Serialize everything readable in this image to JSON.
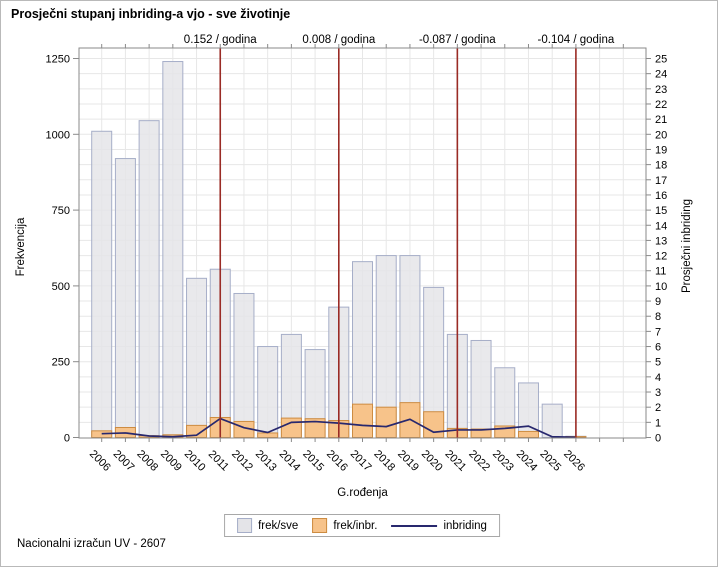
{
  "title": "Prosječni stupanj inbriding-a vjo - sve životinje",
  "footer": "Nacionalni izračun UV - 2607",
  "legend": {
    "items": [
      {
        "label": "frek/sve",
        "type": "box",
        "fill": "#e4e4e8",
        "border": "#a6aec8"
      },
      {
        "label": "frek/inbr.",
        "type": "box",
        "fill": "#f7c38a",
        "border": "#cd8c42"
      },
      {
        "label": "inbriding",
        "type": "line",
        "color": "#28286e"
      }
    ]
  },
  "chart_data": {
    "type": "bar+line combo",
    "title": "Prosječni stupanj inbriding-a vjo - sve životinje",
    "xlabel": "G.rođenja",
    "ylabel_left": "Frekvencija",
    "ylabel_right": "Prosječni inbriding",
    "categories": [
      2006,
      2007,
      2008,
      2009,
      2010,
      2011,
      2012,
      2013,
      2014,
      2015,
      2016,
      2017,
      2018,
      2019,
      2020,
      2021,
      2022,
      2023,
      2024,
      2025,
      2026
    ],
    "series": [
      {
        "name": "frek/sve",
        "type": "bar",
        "axis": "left",
        "values": [
          1010,
          920,
          1045,
          1240,
          525,
          555,
          475,
          300,
          340,
          290,
          430,
          580,
          600,
          600,
          495,
          340,
          320,
          230,
          180,
          110,
          4
        ]
      },
      {
        "name": "frek/inbr.",
        "type": "bar",
        "axis": "left",
        "values": [
          22,
          33,
          6,
          9,
          40,
          66,
          53,
          15,
          64,
          62,
          56,
          110,
          100,
          115,
          85,
          30,
          28,
          38,
          20,
          0,
          3
        ]
      },
      {
        "name": "inbriding",
        "type": "line",
        "axis": "right",
        "values": [
          0.25,
          0.3,
          0.1,
          0.05,
          0.15,
          1.25,
          0.65,
          0.33,
          1.0,
          1.05,
          0.95,
          0.8,
          0.72,
          1.2,
          0.35,
          0.5,
          0.5,
          0.6,
          0.75,
          0.05,
          0.02
        ]
      }
    ],
    "y_left": {
      "label": "Frekvencija",
      "ticks": [
        0,
        250,
        500,
        750,
        1000,
        1250
      ],
      "max": 1250
    },
    "y_right": {
      "label": "Prosječni inbriding",
      "min": 0,
      "max": 25,
      "step": 1
    },
    "reference_lines": [
      {
        "x": 2011,
        "label": "0.152 / godina"
      },
      {
        "x": 2016,
        "label": "0.008 / godina"
      },
      {
        "x": 2021,
        "label": "-0.087 / godina"
      },
      {
        "x": 2026,
        "label": "-0.104 / godina"
      }
    ],
    "grid": true,
    "legend_position": "bottom",
    "colors": {
      "bar_all_fill": "#e4e4e8",
      "bar_all_border": "#a6aec8",
      "bar_inbr_fill": "#f7c38a",
      "bar_inbr_border": "#cd8c42",
      "line": "#28286e",
      "reference": "#9a2b25",
      "grid": "#e7e7e7",
      "frame": "#8a8a8a"
    }
  }
}
